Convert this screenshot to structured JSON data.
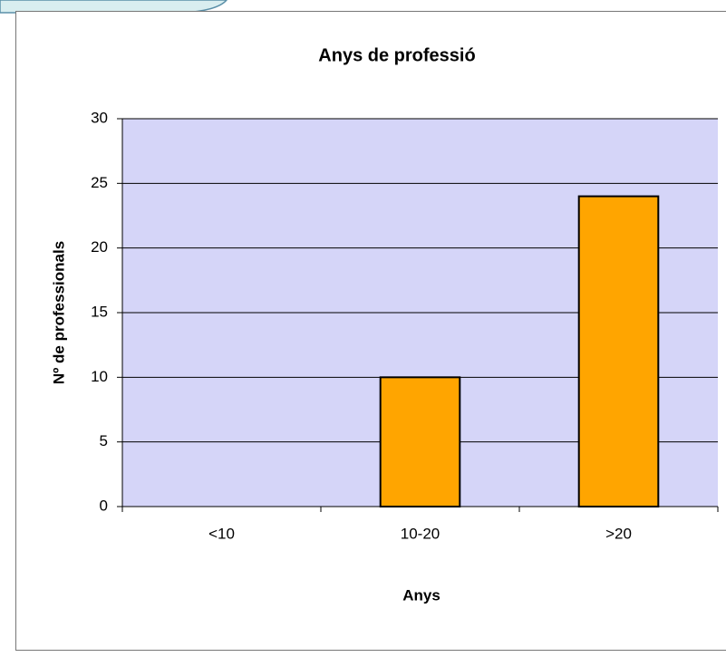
{
  "chart_data": {
    "type": "bar",
    "title": "Anys de professió",
    "x_label": "Anys",
    "y_label": "Nº de professionals",
    "categories": [
      "<10",
      "10-20",
      ">20"
    ],
    "values": [
      0,
      10,
      24
    ],
    "color": "#ffa500",
    "ylim": [
      0,
      30
    ],
    "yticks": [
      0,
      5,
      10,
      15,
      20,
      25,
      30
    ],
    "grid": true
  }
}
